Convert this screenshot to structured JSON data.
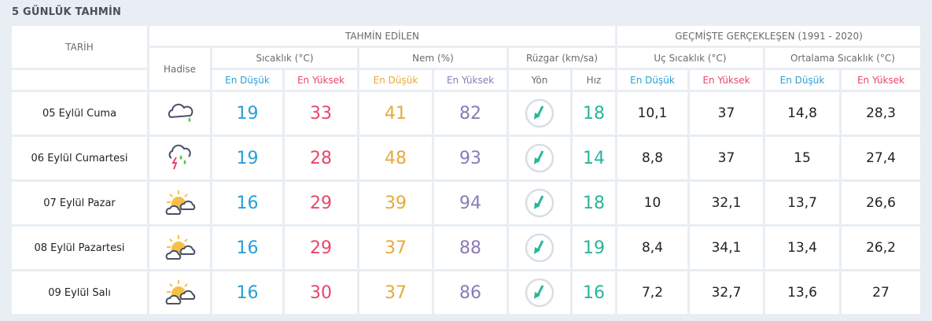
{
  "title": "5 GÜNLÜK TAHMİN",
  "headers": {
    "date": "TARİH",
    "forecast": "TAHMİN EDİLEN",
    "history": "GEÇMİŞTE GERÇEKLEŞEN (1991 - 2020)",
    "event": "Hadise",
    "temp": "Sıcaklık (°C)",
    "humidity": "Nem (%)",
    "wind": "Rüzgar (km/sa)",
    "extreme": "Uç Sıcaklık (°C)",
    "avg": "Ortalama Sıcaklık (°C)",
    "low": "En Düşük",
    "high": "En Yüksek",
    "dir": "Yön",
    "speed": "Hız"
  },
  "colors": {
    "low": "#2a9fd6",
    "high": "#e8476a",
    "hum_low": "#e8a93a",
    "hum_high": "#8a7bb8",
    "wind": "#2bb59a"
  },
  "rows": [
    {
      "date": "05 Eylül Cuma",
      "icon": "cloud-rain-icon",
      "tlo": "19",
      "thi": "33",
      "hlo": "41",
      "hhi": "82",
      "wind_dir": "wind-arrow-icon",
      "speed": "18",
      "xlo": "10,1",
      "xhi": "37",
      "alo": "14,8",
      "ahi": "28,3"
    },
    {
      "date": "06 Eylül Cumartesi",
      "icon": "thunderstorm-icon",
      "tlo": "19",
      "thi": "28",
      "hlo": "48",
      "hhi": "93",
      "wind_dir": "wind-arrow-icon",
      "speed": "14",
      "xlo": "8,8",
      "xhi": "37",
      "alo": "15",
      "ahi": "27,4"
    },
    {
      "date": "07 Eylül Pazar",
      "icon": "partly-cloudy-icon",
      "tlo": "16",
      "thi": "29",
      "hlo": "39",
      "hhi": "94",
      "wind_dir": "wind-arrow-icon",
      "speed": "18",
      "xlo": "10",
      "xhi": "32,1",
      "alo": "13,7",
      "ahi": "26,6"
    },
    {
      "date": "08 Eylül Pazartesi",
      "icon": "partly-cloudy-icon",
      "tlo": "16",
      "thi": "29",
      "hlo": "37",
      "hhi": "88",
      "wind_dir": "wind-arrow-icon",
      "speed": "19",
      "xlo": "8,4",
      "xhi": "34,1",
      "alo": "13,4",
      "ahi": "26,2"
    },
    {
      "date": "09 Eylül Salı",
      "icon": "partly-cloudy-icon",
      "tlo": "16",
      "thi": "30",
      "hlo": "37",
      "hhi": "86",
      "wind_dir": "wind-arrow-icon",
      "speed": "16",
      "xlo": "7,2",
      "xhi": "32,7",
      "alo": "13,6",
      "ahi": "27"
    }
  ]
}
